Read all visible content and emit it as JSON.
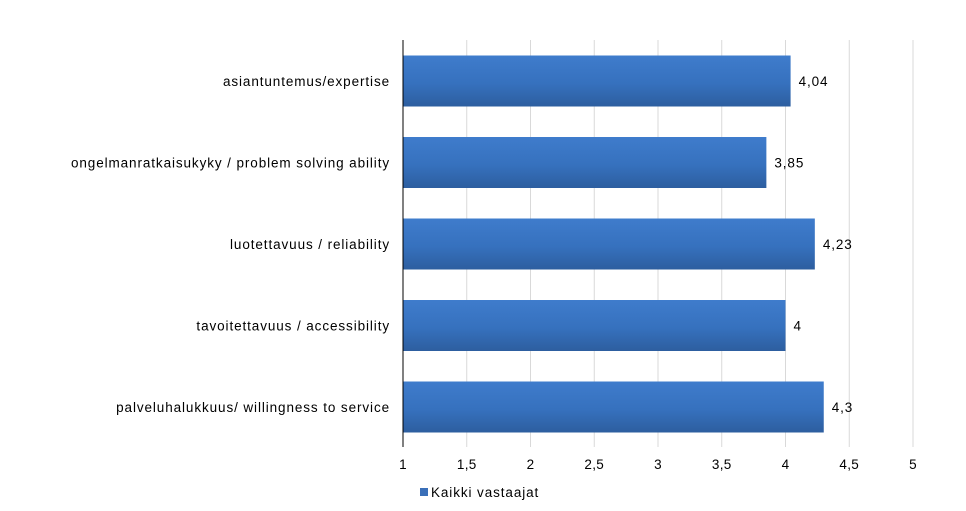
{
  "chart_data": {
    "type": "bar",
    "orientation": "horizontal",
    "categories": [
      "asiantuntemus/expertise",
      "ongelmanratkaisukyky / problem solving ability",
      "luotettavuus / reliability",
      "tavoitettavuus / accessibility",
      "palveluhalukkuus/ willingness to service"
    ],
    "series": [
      {
        "name": "Kaikki vastaajat",
        "values": [
          4.04,
          3.85,
          4.23,
          4,
          4.3
        ],
        "value_labels": [
          "4,04",
          "3,85",
          "4,23",
          "4",
          "4,3"
        ],
        "color": "#3a6fb8"
      }
    ],
    "xlim": [
      1,
      5
    ],
    "x_ticks": [
      1,
      1.5,
      2,
      2.5,
      3,
      3.5,
      4,
      4.5,
      5
    ],
    "x_tick_labels": [
      "1",
      "1,5",
      "2",
      "2,5",
      "3",
      "3,5",
      "4",
      "4,5",
      "5"
    ],
    "grid": true,
    "legend": "bottom",
    "title": "",
    "xlabel": "",
    "ylabel": ""
  }
}
